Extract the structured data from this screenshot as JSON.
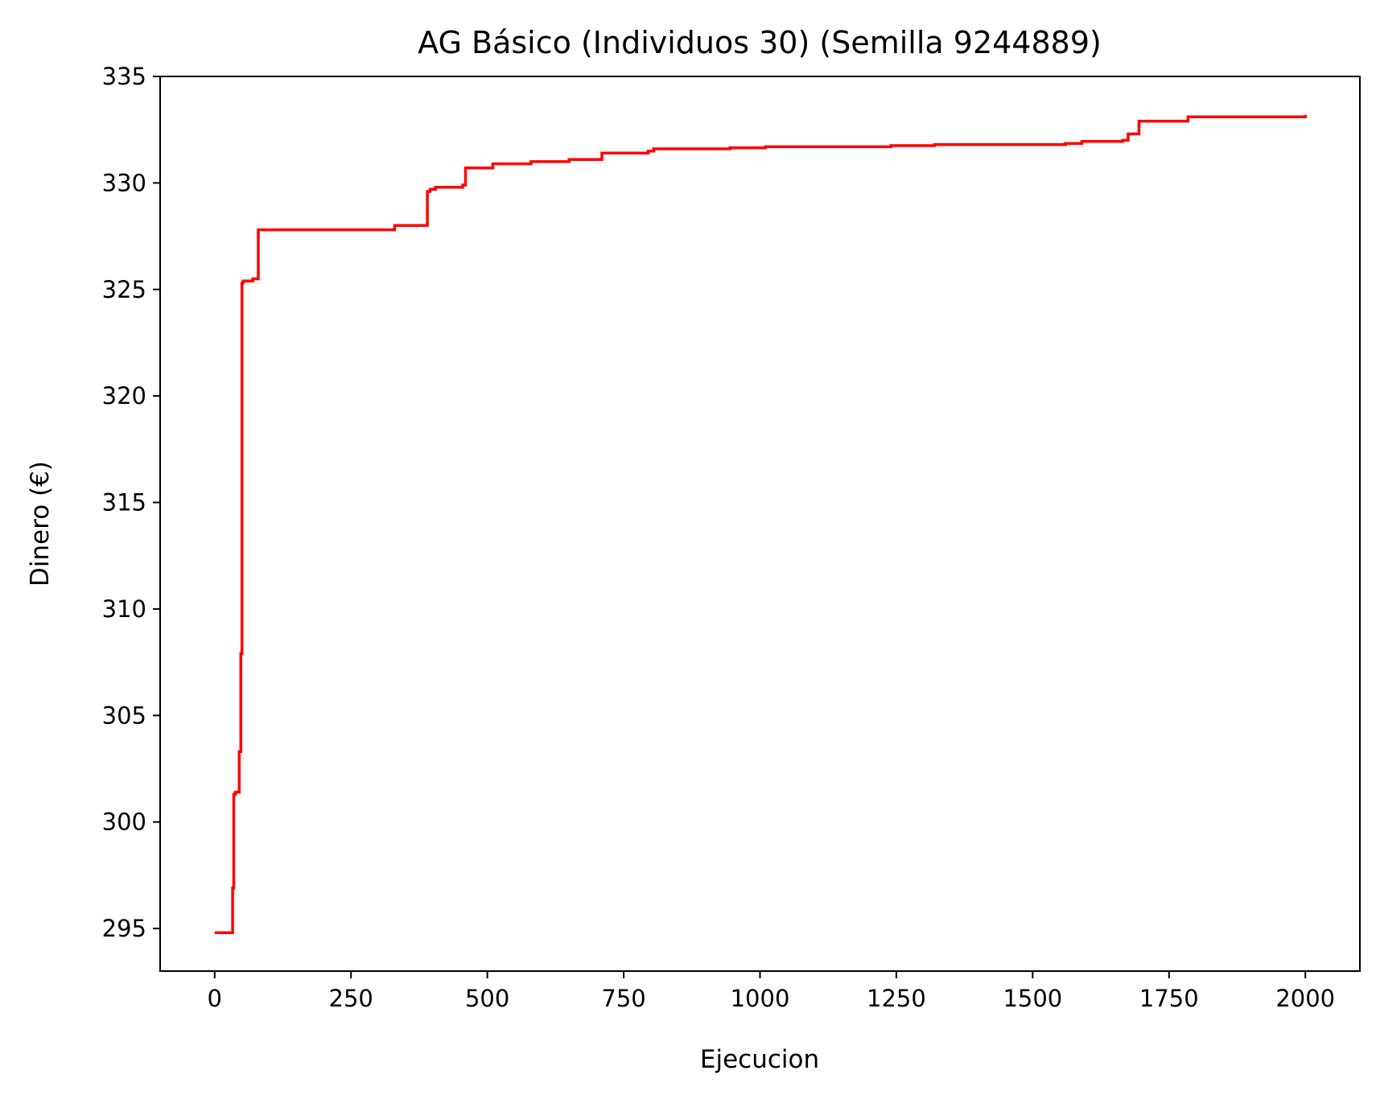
{
  "chart_data": {
    "type": "line",
    "title": "AG Básico (Individuos 30) (Semilla 9244889)",
    "xlabel": "Ejecucion",
    "ylabel": "Dinero (€)",
    "xlim": [
      -100,
      2100
    ],
    "ylim": [
      293,
      335
    ],
    "xticks": [
      0,
      250,
      500,
      750,
      1000,
      1250,
      1500,
      1750,
      2000
    ],
    "xtick_labels": [
      "0",
      "250",
      "500",
      "750",
      "1000",
      "1250",
      "1500",
      "1750",
      "2000"
    ],
    "yticks": [
      295,
      300,
      305,
      310,
      315,
      320,
      325,
      330,
      335
    ],
    "ytick_labels": [
      "295",
      "300",
      "305",
      "310",
      "315",
      "320",
      "325",
      "330",
      "335"
    ],
    "grid": false,
    "series": [
      {
        "color": "#ff0000",
        "step": "post",
        "x": [
          0,
          33,
          35,
          38,
          45,
          48,
          50,
          52,
          60,
          70,
          80,
          330,
          390,
          395,
          405,
          455,
          460,
          510,
          580,
          650,
          710,
          795,
          805,
          945,
          1010,
          1240,
          1320,
          1560,
          1590,
          1665,
          1675,
          1695,
          1785,
          2000
        ],
        "y": [
          294.8,
          296.9,
          301.3,
          301.4,
          303.3,
          307.9,
          325.3,
          325.4,
          325.4,
          325.5,
          327.8,
          328.0,
          329.6,
          329.7,
          329.8,
          329.9,
          330.7,
          330.9,
          331.0,
          331.1,
          331.4,
          331.5,
          331.6,
          331.65,
          331.7,
          331.75,
          331.8,
          331.85,
          331.95,
          332.0,
          332.3,
          332.9,
          333.1,
          333.2
        ]
      }
    ]
  }
}
